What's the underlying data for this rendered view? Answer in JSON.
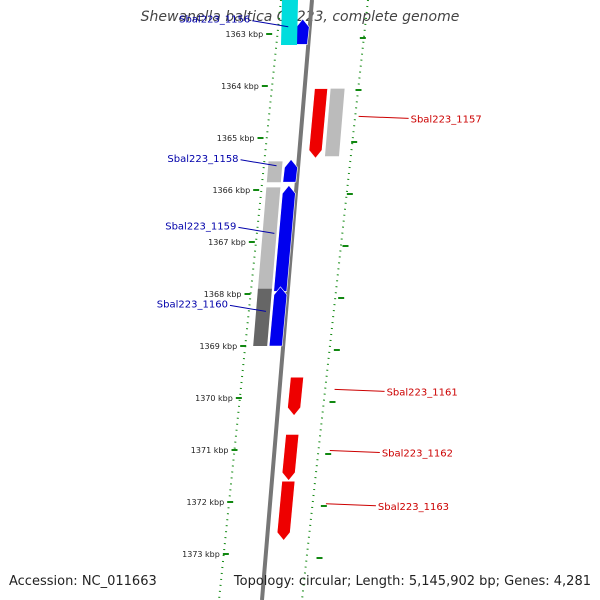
{
  "title": "Shewanella baltica OS223, complete genome",
  "footer": {
    "accession": "Accession: NC_011663",
    "summary": "Topology: circular; Length: 5,145,902 bp; Genes: 4,281"
  },
  "colors": {
    "forward": "#0000ee",
    "reverse": "#ee0000",
    "rna": "#00dddd",
    "backbone": "#777777",
    "tick": "#118811",
    "label_forward": "#0000aa",
    "label_reverse": "#cc0000"
  },
  "axis": {
    "unit": "kbp",
    "ticks": [
      "1363 kbp",
      "1364 kbp",
      "1365 kbp",
      "1366 kbp",
      "1367 kbp",
      "1368 kbp",
      "1369 kbp",
      "1370 kbp",
      "1371 kbp",
      "1372 kbp",
      "1373 kbp"
    ]
  },
  "genes": [
    {
      "label": "Sbal223_1156",
      "strand": "forward",
      "start_kbp": 1362.75,
      "end_kbp": 1363.2
    },
    {
      "label": "Sbal223_1157",
      "strand": "reverse",
      "start_kbp": 1364.05,
      "end_kbp": 1365.35
    },
    {
      "label": "Sbal223_1158",
      "strand": "forward",
      "start_kbp": 1365.45,
      "end_kbp": 1365.85
    },
    {
      "label": "Sbal223_1159",
      "strand": "forward",
      "start_kbp": 1365.95,
      "end_kbp": 1367.95
    },
    {
      "label": "Sbal223_1160",
      "strand": "forward",
      "start_kbp": 1367.9,
      "end_kbp": 1369.0
    },
    {
      "label": "Sbal223_1161",
      "strand": "reverse",
      "start_kbp": 1369.6,
      "end_kbp": 1370.3
    },
    {
      "label": "Sbal223_1162",
      "strand": "reverse",
      "start_kbp": 1370.7,
      "end_kbp": 1371.55
    },
    {
      "label": "Sbal223_1163",
      "strand": "reverse",
      "start_kbp": 1371.6,
      "end_kbp": 1372.7
    }
  ]
}
